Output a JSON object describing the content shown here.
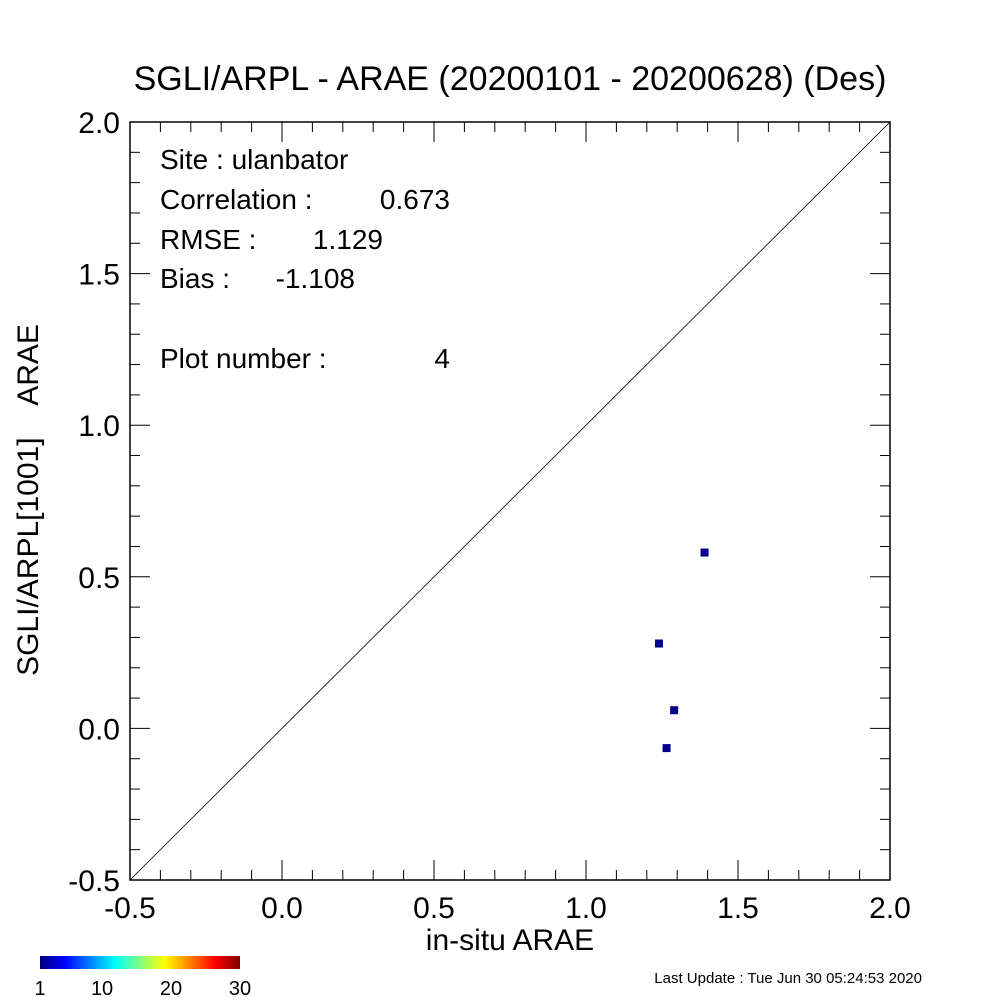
{
  "chart_data": {
    "type": "scatter",
    "title": "SGLI/ARPL - ARAE (20200101 - 20200628) (Des)",
    "xlabel": "in-situ ARAE",
    "ylabel": "SGLI/ARPL[1001]    ARAE",
    "xlim": [
      -0.5,
      2.0
    ],
    "ylim": [
      -0.5,
      2.0
    ],
    "xticks": [
      "-0.5",
      "0.0",
      "0.5",
      "1.0",
      "1.5",
      "2.0"
    ],
    "yticks": [
      "-0.5",
      "0.0",
      "0.5",
      "1.0",
      "1.5",
      "2.0"
    ],
    "reference_line": "1:1",
    "point_color": "#00008b",
    "points": [
      {
        "x": 1.39,
        "y": 0.58
      },
      {
        "x": 1.24,
        "y": 0.28
      },
      {
        "x": 1.29,
        "y": 0.06
      },
      {
        "x": 1.265,
        "y": -0.065
      }
    ],
    "stats": {
      "site": "Site : ulanbator",
      "correlation_label": "Correlation :",
      "correlation_value": "0.673",
      "rmse_label": "RMSE :",
      "rmse_value": "1.129",
      "bias_label": "Bias :",
      "bias_value": "-1.108",
      "plot_number_label": "Plot number :",
      "plot_number_value": "4"
    },
    "colorbar": {
      "ticks": [
        "1",
        "10",
        "20",
        "30"
      ],
      "colors": [
        "#00007f",
        "#0000ff",
        "#0080ff",
        "#00ffff",
        "#80ff80",
        "#ffff00",
        "#ff8000",
        "#ff0000",
        "#7f0000"
      ]
    }
  },
  "footer": {
    "last_update": "Last Update : Tue Jun 30 05:24:53 2020"
  }
}
